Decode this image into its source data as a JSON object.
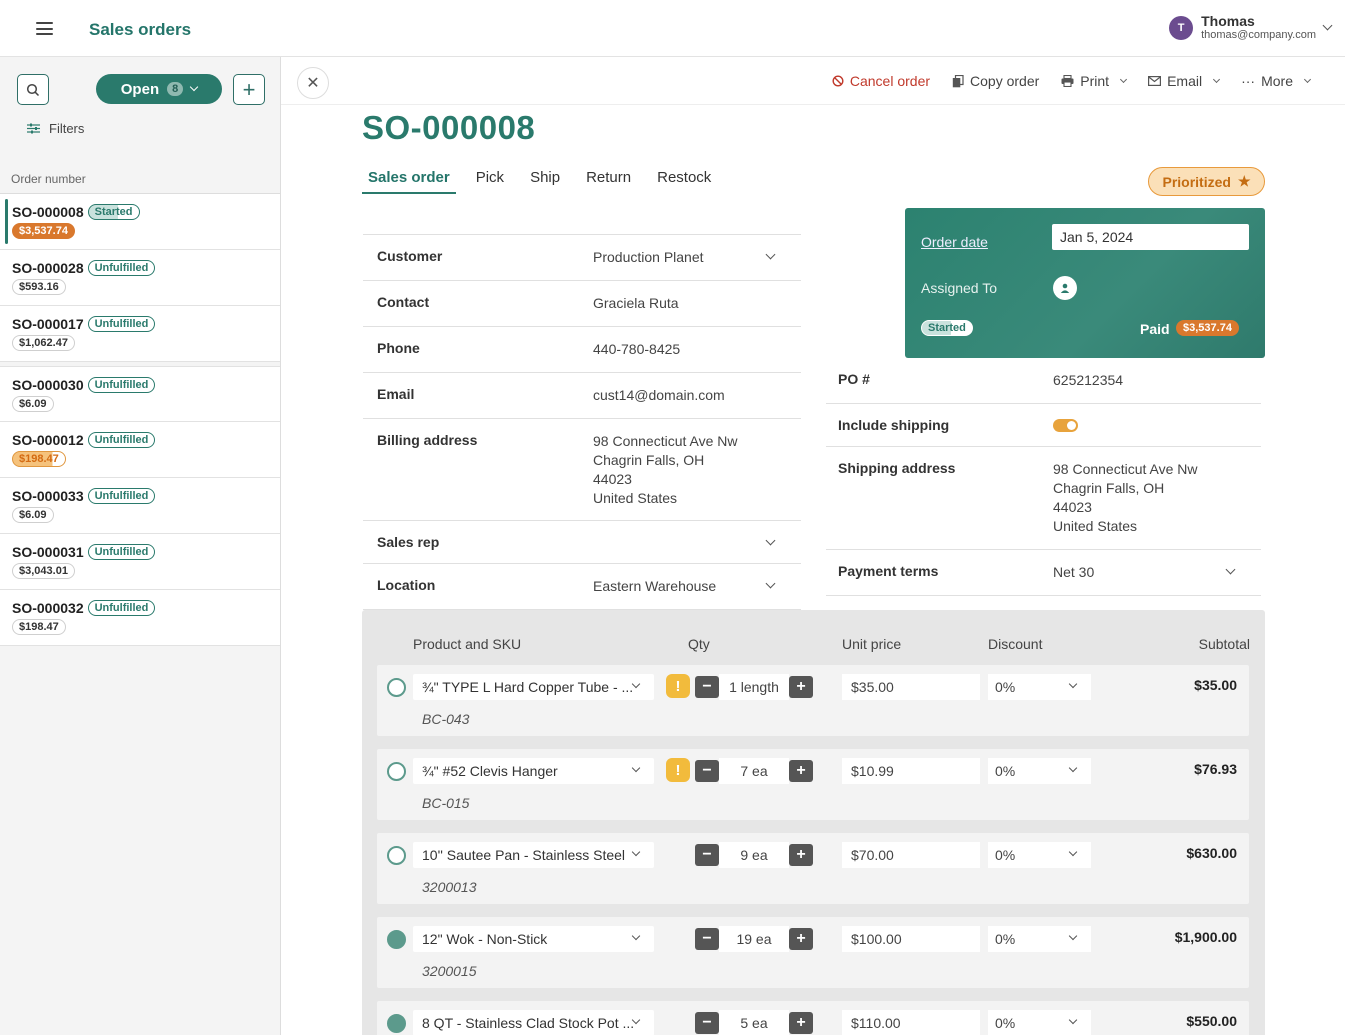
{
  "app": {
    "title": "Sales orders"
  },
  "user": {
    "initial": "T",
    "name": "Thomas",
    "email": "thomas@company.com"
  },
  "sidebar": {
    "open_label": "Open",
    "open_count": "8",
    "filters_label": "Filters",
    "column_header": "Order number",
    "orders": [
      {
        "number": "SO-000008",
        "status": "Started",
        "amount": "$3,537.74"
      },
      {
        "number": "SO-000028",
        "status": "Unfulfilled",
        "amount": "$593.16"
      },
      {
        "number": "SO-000017",
        "status": "Unfulfilled",
        "amount": "$1,062.47"
      },
      {
        "number": "SO-000030",
        "status": "Unfulfilled",
        "amount": "$6.09"
      },
      {
        "number": "SO-000012",
        "status": "Unfulfilled",
        "amount": "$198.47"
      },
      {
        "number": "SO-000033",
        "status": "Unfulfilled",
        "amount": "$6.09"
      },
      {
        "number": "SO-000031",
        "status": "Unfulfilled",
        "amount": "$3,043.01"
      },
      {
        "number": "SO-000032",
        "status": "Unfulfilled",
        "amount": "$198.47"
      }
    ]
  },
  "toolbar": {
    "cancel": "Cancel order",
    "copy": "Copy order",
    "print": "Print",
    "email": "Email",
    "more": "More"
  },
  "order": {
    "number": "SO-000008",
    "tabs": [
      "Sales order",
      "Pick",
      "Ship",
      "Return",
      "Restock"
    ],
    "priority": "Prioritized",
    "customer_label": "Customer",
    "customer": "Production Planet",
    "contact_label": "Contact",
    "contact": "Graciela Ruta",
    "phone_label": "Phone",
    "phone": "440-780-8425",
    "email_label": "Email",
    "email": "cust14@domain.com",
    "billing_label": "Billing address",
    "billing": [
      "98 Connecticut Ave Nw",
      "Chagrin Falls, OH",
      "44023",
      "United States"
    ],
    "salesrep_label": "Sales rep",
    "location_label": "Location",
    "location": "Eastern Warehouse",
    "order_date_label": "Order date",
    "order_date": "Jan 5, 2024",
    "assigned_label": "Assigned To",
    "status": "Started",
    "paid_label": "Paid",
    "paid_amount": "$3,537.74",
    "po_label": "PO #",
    "po": "625212354",
    "include_shipping_label": "Include shipping",
    "include_shipping": true,
    "shipping_label": "Shipping address",
    "shipping": [
      "98 Connecticut Ave Nw",
      "Chagrin Falls, OH",
      "44023",
      "United States"
    ],
    "terms_label": "Payment terms",
    "terms": "Net 30"
  },
  "lines": {
    "headers": {
      "product": "Product and SKU",
      "qty": "Qty",
      "price": "Unit price",
      "discount": "Discount",
      "subtotal": "Subtotal"
    },
    "items": [
      {
        "product": "¾\" TYPE L Hard Copper Tube - ...",
        "sku": "BC-043",
        "warning": true,
        "qty": "1 length",
        "price": "$35.00",
        "discount": "0%",
        "subtotal": "$35.00",
        "done": false
      },
      {
        "product": "¾\" #52 Clevis Hanger",
        "sku": "BC-015",
        "warning": true,
        "qty": "7 ea",
        "price": "$10.99",
        "discount": "0%",
        "subtotal": "$76.93",
        "done": false
      },
      {
        "product": "10'' Sautee Pan - Stainless Steel",
        "sku": "3200013",
        "warning": false,
        "qty": "9 ea",
        "price": "$70.00",
        "discount": "0%",
        "subtotal": "$630.00",
        "done": false
      },
      {
        "product": "12\" Wok - Non-Stick",
        "sku": "3200015",
        "warning": false,
        "qty": "19 ea",
        "price": "$100.00",
        "discount": "0%",
        "subtotal": "$1,900.00",
        "done": true
      },
      {
        "product": "8 QT - Stainless Clad Stock Pot ...",
        "sku": "",
        "warning": false,
        "qty": "5 ea",
        "price": "$110.00",
        "discount": "0%",
        "subtotal": "$550.00",
        "done": true
      }
    ]
  },
  "colors": {
    "brand": "#2a7a6c",
    "accent": "#d9782d",
    "warning": "#f2bb3c",
    "danger": "#c0392b"
  }
}
